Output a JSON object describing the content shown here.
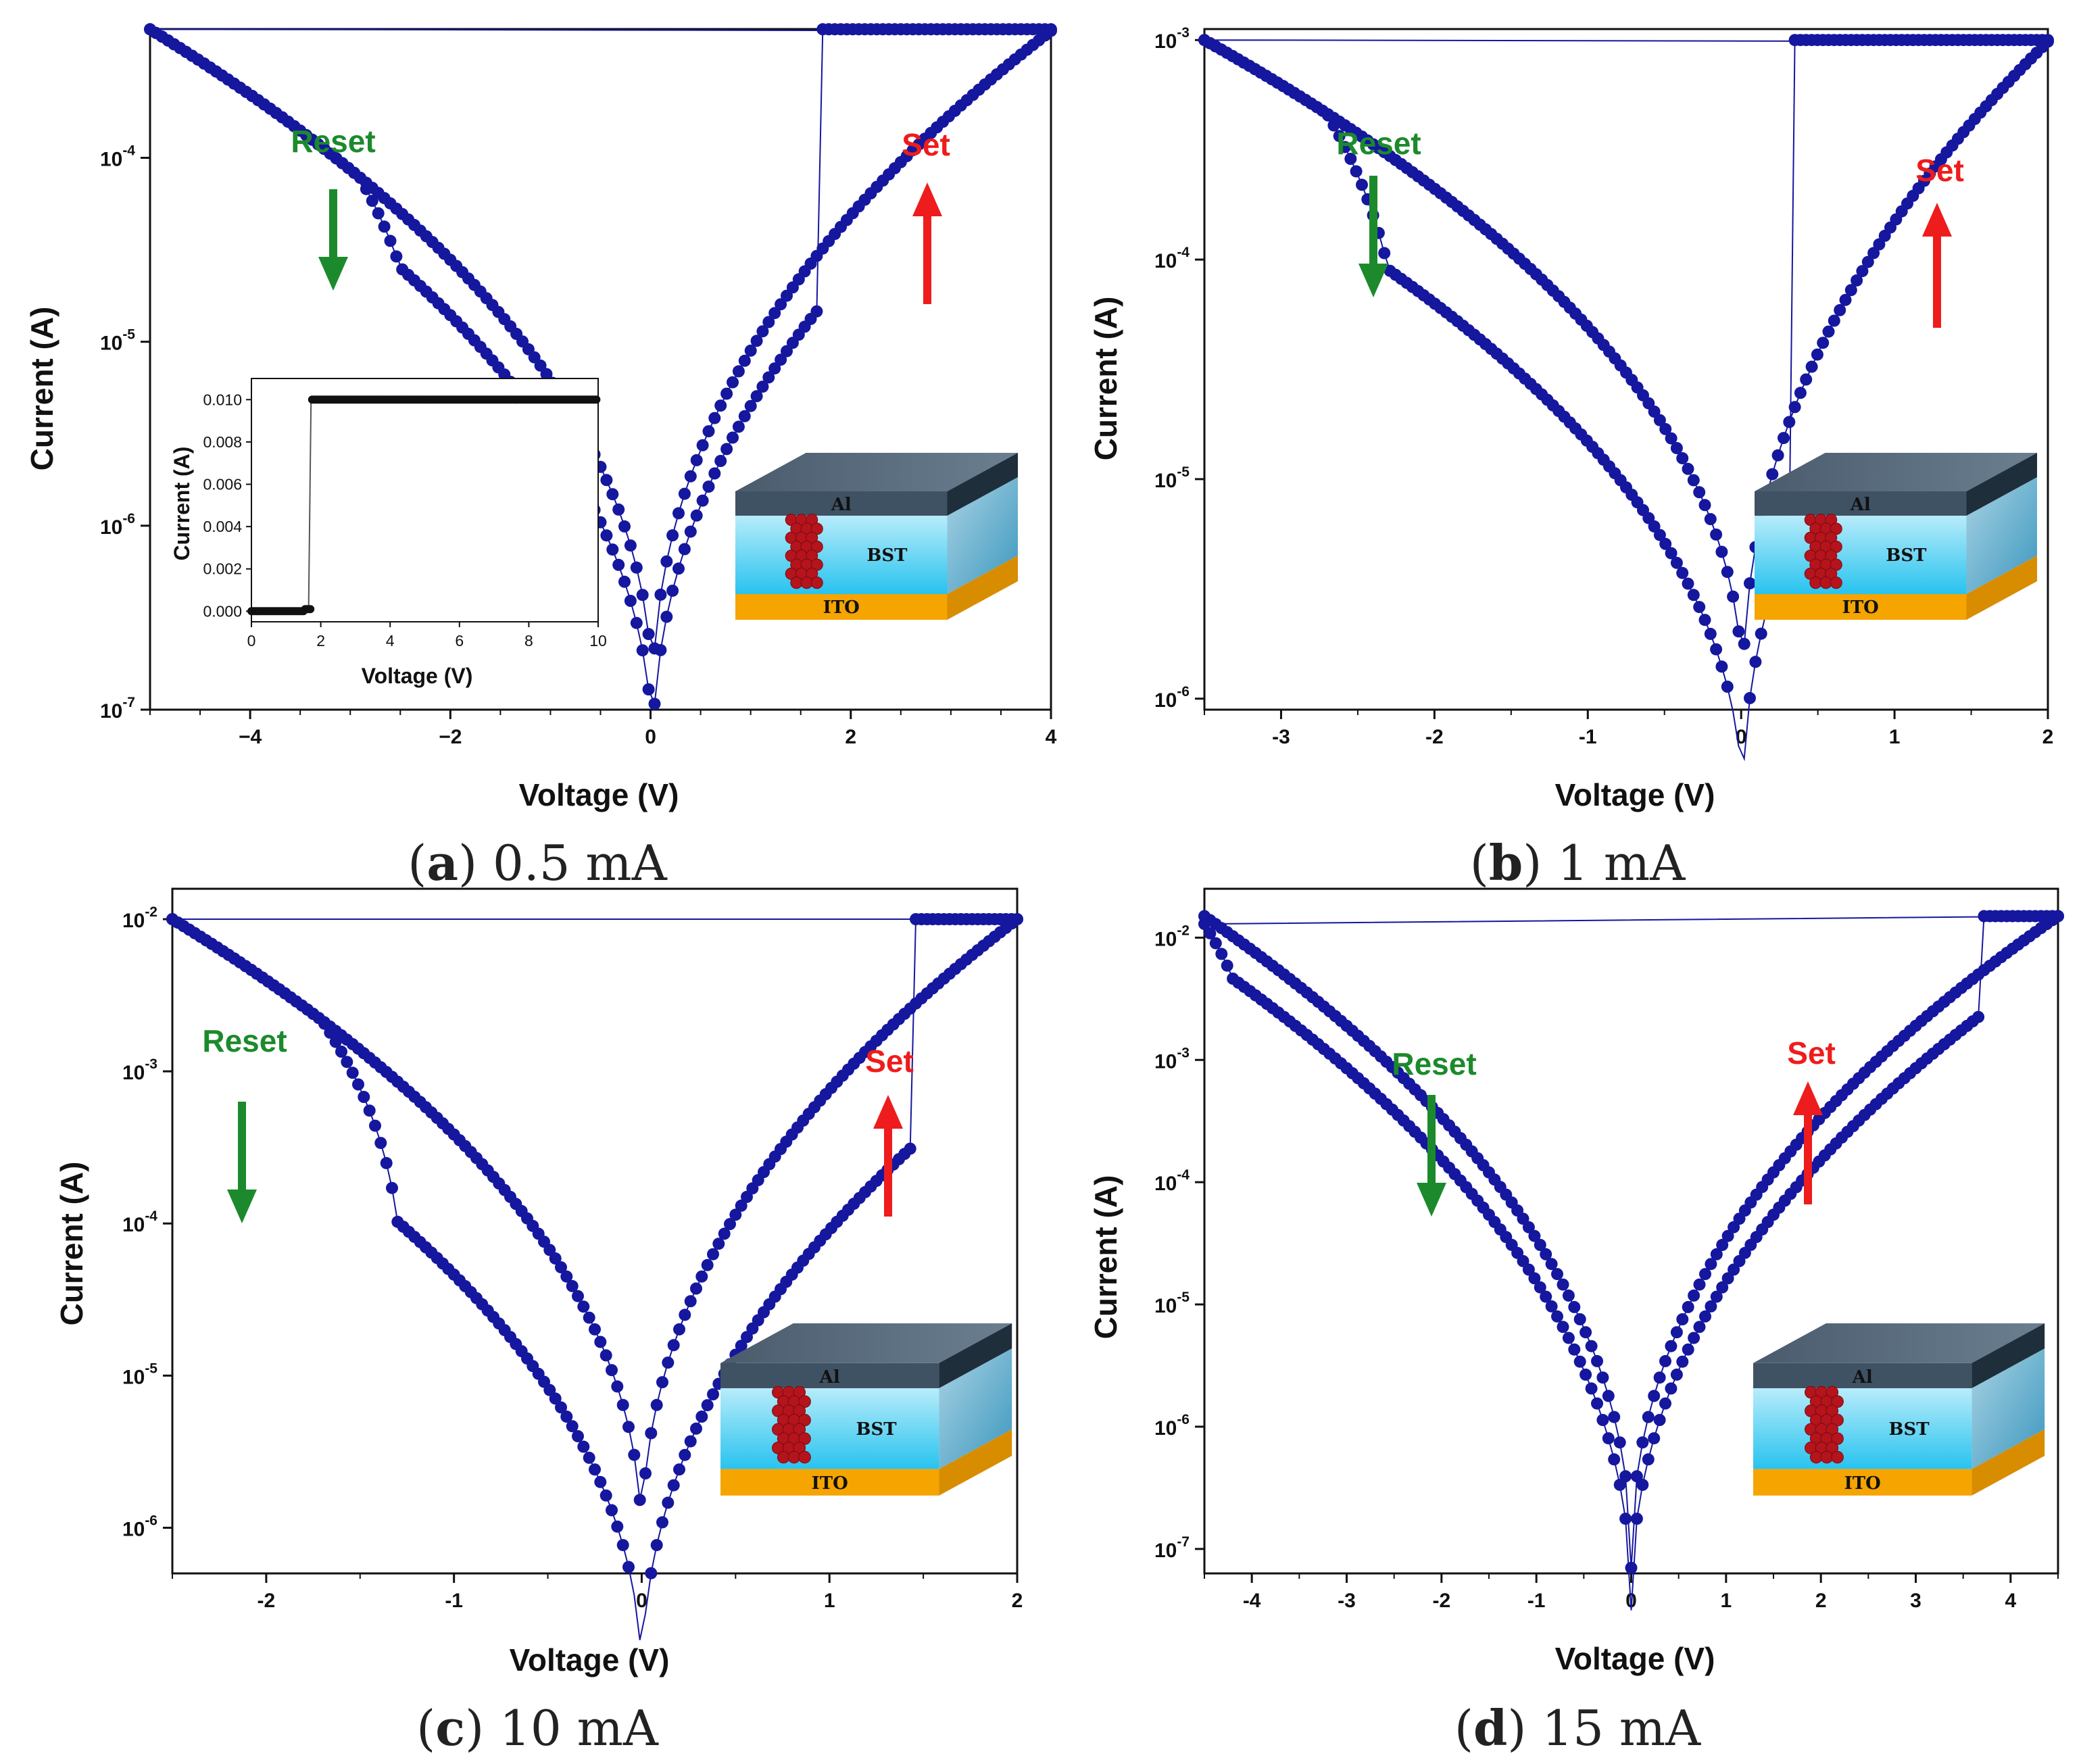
{
  "chart_data": [
    {
      "type": "scatter",
      "panel": "a",
      "caption_letter": "a",
      "caption_text": "0.5 mA",
      "xlabel": "Voltage (V)",
      "ylabel": "Current (A)",
      "xlim": [
        -5,
        4
      ],
      "ylim_log10": [
        -7,
        -3.3
      ],
      "xticks": [
        {
          "value": -4,
          "label": "−4"
        },
        {
          "value": -2,
          "label": "−2"
        },
        {
          "value": 0,
          "label": "0"
        },
        {
          "value": 2,
          "label": "2"
        },
        {
          "value": 4,
          "label": "4"
        }
      ],
      "yticks": [
        {
          "exp": -7,
          "base": "10",
          "label": "-7"
        },
        {
          "exp": -6,
          "base": "10",
          "label": "-6"
        },
        {
          "exp": -5,
          "base": "10",
          "label": "-5"
        },
        {
          "exp": -4,
          "base": "10",
          "label": "-4"
        }
      ],
      "compliance_current": 0.0005,
      "v_set": 1.7,
      "v_reset": -2.5,
      "v_dip": 0.02,
      "min_current": 1e-07,
      "hrs_lrs_ratio": 0.5,
      "annotations": {
        "reset": "Reset",
        "set": "Set"
      },
      "device": {
        "top": "Al",
        "middle": "BST",
        "bottom": "ITO"
      },
      "inset": {
        "type": "line",
        "xlabel": "Voltage (V)",
        "ylabel": "Current (A)",
        "xlim": [
          0,
          10
        ],
        "ylim": [
          -0.0005,
          0.011
        ],
        "xticks": [
          "0",
          "2",
          "4",
          "6",
          "8",
          "10"
        ],
        "yticks": [
          "0.000",
          "0.002",
          "0.004",
          "0.006",
          "0.008",
          "0.010"
        ],
        "points": [
          [
            0,
            0.0
          ],
          [
            0.5,
            0.0
          ],
          [
            1.0,
            0.0
          ],
          [
            1.5,
            0.0
          ],
          [
            1.65,
            0.0001
          ],
          [
            1.72,
            0.01
          ],
          [
            4,
            0.01
          ],
          [
            7,
            0.01
          ],
          [
            10,
            0.01
          ]
        ]
      }
    },
    {
      "type": "scatter",
      "panel": "b",
      "caption_letter": "b",
      "caption_text": "1 mA",
      "xlabel": "Voltage (V)",
      "ylabel": "Current (A)",
      "xlim": [
        -3.5,
        2
      ],
      "ylim_log10": [
        -6.05,
        -2.95
      ],
      "xticks": [
        {
          "value": -3,
          "label": "-3"
        },
        {
          "value": -2,
          "label": "-2"
        },
        {
          "value": -1,
          "label": "-1"
        },
        {
          "value": 0,
          "label": "0"
        },
        {
          "value": 1,
          "label": "1"
        },
        {
          "value": 2,
          "label": "2"
        }
      ],
      "yticks": [
        {
          "exp": -6,
          "base": "10",
          "label": "-6"
        },
        {
          "exp": -5,
          "base": "10",
          "label": "-5"
        },
        {
          "exp": -4,
          "base": "10",
          "label": "-4"
        },
        {
          "exp": -3,
          "base": "10",
          "label": "-3"
        }
      ],
      "compliance_current": 0.001,
      "v_set": 0.35,
      "v_reset": -2.3,
      "v_dip": 0.01,
      "min_current": 9.5e-07,
      "hrs_lrs_ratio": 0.3,
      "annotations": {
        "reset": "Reset",
        "set": "Set"
      },
      "device": {
        "top": "Al",
        "middle": "BST",
        "bottom": "ITO"
      }
    },
    {
      "type": "scatter",
      "panel": "c",
      "caption_letter": "c",
      "caption_text": "10 mA",
      "xlabel": "Voltage (V)",
      "ylabel": "Current (A)",
      "xlim": [
        -2.5,
        2
      ],
      "ylim_log10": [
        -6.3,
        -1.8
      ],
      "xticks": [
        {
          "value": -2,
          "label": "-2"
        },
        {
          "value": -1,
          "label": "-1"
        },
        {
          "value": 0,
          "label": "0"
        },
        {
          "value": 1,
          "label": "1"
        },
        {
          "value": 2,
          "label": "2"
        }
      ],
      "yticks": [
        {
          "exp": -6,
          "base": "10",
          "label": "-6"
        },
        {
          "exp": -5,
          "base": "10",
          "label": "-5"
        },
        {
          "exp": -4,
          "base": "10",
          "label": "-4"
        },
        {
          "exp": -3,
          "base": "10",
          "label": "-3"
        },
        {
          "exp": -2,
          "base": "10",
          "label": "-2"
        }
      ],
      "compliance_current": 0.01,
      "v_set": 1.45,
      "v_reset": -1.3,
      "v_dip": 0.0,
      "min_current": 7e-07,
      "hrs_lrs_ratio": 0.12,
      "annotations": {
        "reset": "Reset",
        "set": "Set"
      },
      "device": {
        "top": "Al",
        "middle": "BST",
        "bottom": "ITO"
      }
    },
    {
      "type": "scatter",
      "panel": "d",
      "caption_letter": "d",
      "caption_text": "15 mA",
      "xlabel": "Voltage (V)",
      "ylabel": "Current (A)",
      "xlim": [
        -4.5,
        4.5
      ],
      "ylim_log10": [
        -7.2,
        -1.6
      ],
      "xticks": [
        {
          "value": -4,
          "label": "-4"
        },
        {
          "value": -3,
          "label": "-3"
        },
        {
          "value": -2,
          "label": "-2"
        },
        {
          "value": -1,
          "label": "-1"
        },
        {
          "value": 0,
          "label": "0"
        },
        {
          "value": 1,
          "label": "1"
        },
        {
          "value": 2,
          "label": "2"
        },
        {
          "value": 3,
          "label": "3"
        },
        {
          "value": 4,
          "label": "4"
        }
      ],
      "yticks": [
        {
          "exp": -7,
          "base": "10",
          "label": "-7"
        },
        {
          "exp": -6,
          "base": "10",
          "label": "-6"
        },
        {
          "exp": -5,
          "base": "10",
          "label": "-5"
        },
        {
          "exp": -4,
          "base": "10",
          "label": "-4"
        },
        {
          "exp": -3,
          "base": "10",
          "label": "-3"
        },
        {
          "exp": -2,
          "base": "10",
          "label": "-2"
        }
      ],
      "compliance_current": 0.015,
      "v_set": 3.7,
      "v_reset": -4.2,
      "v_dip": 0.0,
      "min_current": 7e-08,
      "hrs_lrs_ratio": 0.45,
      "annotations": {
        "reset": "Reset",
        "set": "Set"
      },
      "device": {
        "top": "Al",
        "middle": "BST",
        "bottom": "ITO"
      }
    }
  ],
  "colors": {
    "data": "#15179e",
    "reset": "#1c8a2c",
    "set": "#ee1c1c",
    "inset_data": "#111111",
    "electrode_top": "#3f5263",
    "electrode_side": "#1f2e3b",
    "oxide": "#7fd6ef",
    "substrate": "#f5a400",
    "filament": "#b5141c"
  }
}
